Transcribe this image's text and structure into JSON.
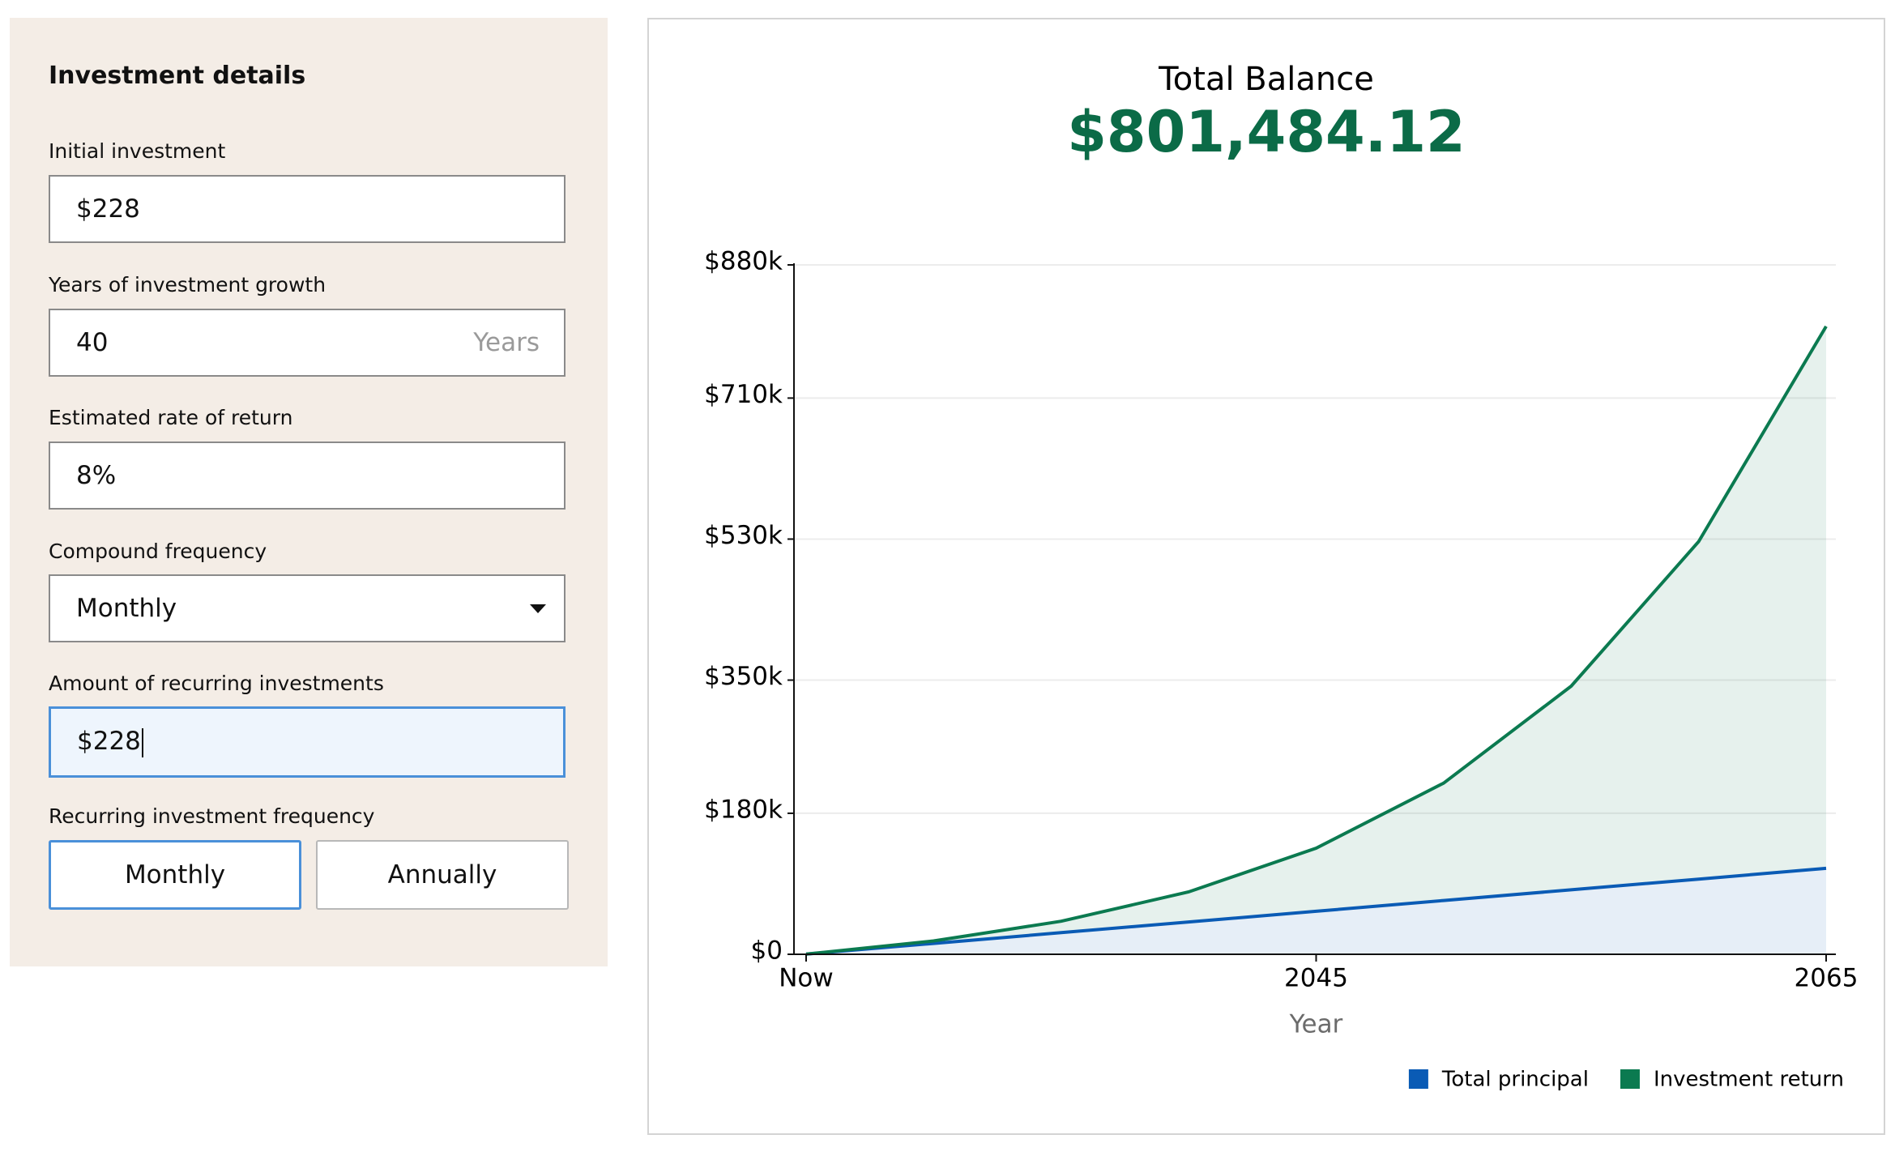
{
  "form": {
    "title": "Investment details",
    "fields": [
      {
        "label": "Initial investment",
        "value": "$228"
      },
      {
        "label": "Years of investment growth",
        "value": "40",
        "suffix": "Years"
      },
      {
        "label": "Estimated rate of return",
        "value": "8%"
      },
      {
        "label": "Compound frequency",
        "value": "Monthly"
      },
      {
        "label": "Amount of recurring investments",
        "value": "$228"
      },
      {
        "label": "Recurring investment frequency",
        "options": [
          "Monthly",
          "Annually"
        ]
      }
    ]
  },
  "chart_data": {
    "type": "stacked-area",
    "title": "Total Balance",
    "subtitle": "$801,484.12",
    "x_label": "Year",
    "x": [
      2025,
      2030,
      2035,
      2040,
      2045,
      2050,
      2055,
      2060,
      2065
    ],
    "xlim": [
      2025,
      2065
    ],
    "xticks": [
      {
        "value": 2025,
        "label": "Now"
      },
      2045,
      2065
    ],
    "ylim": [
      0,
      880000
    ],
    "yticks": [
      {
        "value": 0,
        "label": "$0"
      },
      {
        "value": 180000,
        "label": "$180k"
      },
      {
        "value": 350000,
        "label": "$350k"
      },
      {
        "value": 530000,
        "label": "$530k"
      },
      {
        "value": 710000,
        "label": "$710k"
      },
      {
        "value": 880000,
        "label": "$880k"
      }
    ],
    "grid": true,
    "legend": "bottom-right",
    "series": [
      {
        "name": "Total principal",
        "color": "#0a5bb5",
        "values": [
          228,
          13908,
          27588,
          41268,
          54948,
          68628,
          82308,
          95988,
          109668
        ]
      },
      {
        "name": "Investment return",
        "color": "#0b7a50",
        "values": [
          0,
          3182,
          14629,
          38382,
          80472,
          149880,
          259986,
          430725,
          691818
        ]
      }
    ]
  }
}
